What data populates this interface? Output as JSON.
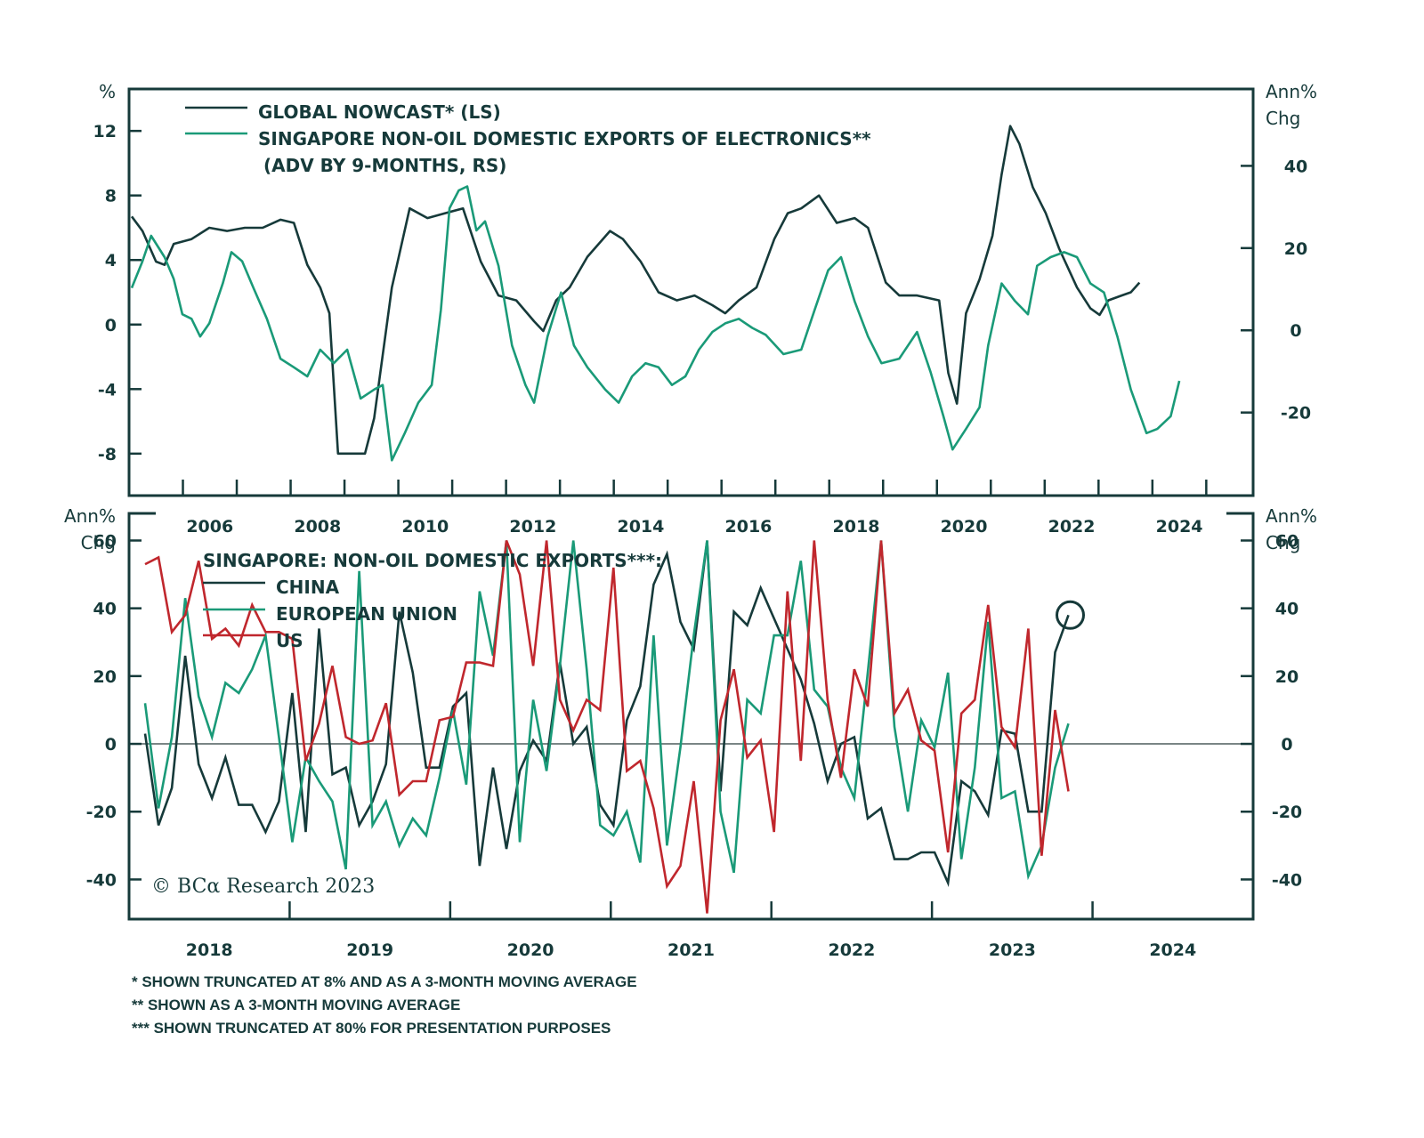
{
  "colors": {
    "frame": "#163a3a",
    "nowcast": "#163a3a",
    "singapore": "#1a9a78",
    "china": "#163a3a",
    "eu": "#1a9a78",
    "us": "#c0272d",
    "zero_line": "#7a8585"
  },
  "chart_data": [
    {
      "type": "line",
      "panel": "top",
      "left_axis_label": "%",
      "right_axis_label": [
        "Ann%",
        "Chg"
      ],
      "left_ylim": [
        -10.6,
        14.6
      ],
      "left_ticks": [
        -8,
        -4,
        0,
        4,
        8,
        12
      ],
      "right_ylim": [
        -40.2,
        58.7
      ],
      "right_ticks": [
        -20,
        0,
        20,
        40
      ],
      "xlim": [
        2005.0,
        2025.87
      ],
      "x_tick_years": [
        2006,
        2007,
        2008,
        2009,
        2010,
        2011,
        2012,
        2013,
        2014,
        2015,
        2016,
        2017,
        2018,
        2019,
        2020,
        2021,
        2022,
        2023,
        2024,
        2025
      ],
      "x_tick_labels": [
        "2006",
        "2008",
        "2010",
        "2012",
        "2014",
        "2016",
        "2018",
        "2020",
        "2022",
        "2024"
      ],
      "legend": [
        {
          "label": "GLOBAL NOWCAST* (LS)",
          "series": "nowcast"
        },
        {
          "label": "SINGAPORE NON-OIL DOMESTIC EXPORTS OF ELECTRONICS**",
          "series": "singapore"
        },
        {
          "label": "(ADV BY 9-MONTHS, RS)",
          "series": null
        }
      ],
      "series": [
        {
          "name": "Global Nowcast (LS)",
          "key": "nowcast",
          "axis": "left",
          "x": [
            2005.05,
            2005.25,
            2005.5,
            2005.66,
            2005.83,
            2006.16,
            2006.49,
            2006.82,
            2007.15,
            2007.48,
            2007.81,
            2008.06,
            2008.31,
            2008.55,
            2008.72,
            2008.88,
            2009.38,
            2009.55,
            2009.88,
            2010.21,
            2010.54,
            2010.87,
            2011.2,
            2011.53,
            2011.86,
            2012.19,
            2012.52,
            2012.69,
            2012.93,
            2013.18,
            2013.51,
            2013.93,
            2014.17,
            2014.5,
            2014.83,
            2015.17,
            2015.5,
            2015.83,
            2016.07,
            2016.32,
            2016.65,
            2016.98,
            2017.23,
            2017.48,
            2017.81,
            2018.14,
            2018.47,
            2018.72,
            2019.05,
            2019.3,
            2019.63,
            2020.04,
            2020.21,
            2020.37,
            2020.54,
            2020.79,
            2021.03,
            2021.2,
            2021.36,
            2021.53,
            2021.78,
            2022.02,
            2022.27,
            2022.6,
            2022.85,
            2023.02,
            2023.18,
            2023.43,
            2023.6,
            2023.76
          ],
          "y": [
            6.7,
            5.8,
            3.9,
            3.7,
            5.0,
            5.3,
            6.0,
            5.8,
            6.0,
            6.0,
            6.5,
            6.3,
            3.7,
            2.3,
            0.7,
            -8.0,
            -8.0,
            -5.8,
            2.3,
            7.2,
            6.6,
            6.9,
            7.2,
            3.9,
            1.8,
            1.5,
            0.2,
            -0.4,
            1.5,
            2.3,
            4.2,
            5.8,
            5.3,
            3.9,
            2.0,
            1.5,
            1.8,
            1.2,
            0.7,
            1.5,
            2.3,
            5.3,
            6.9,
            7.2,
            8.0,
            6.3,
            6.6,
            6.0,
            2.6,
            1.8,
            1.8,
            1.5,
            -3.0,
            -4.9,
            0.7,
            2.8,
            5.5,
            9.3,
            12.3,
            11.2,
            8.5,
            6.9,
            4.7,
            2.3,
            1.0,
            0.6,
            1.5,
            1.8,
            2.0,
            2.6
          ]
        },
        {
          "name": "Singapore non-oil domestic exports of electronics (adv by 9 months, RS)",
          "key": "singapore",
          "axis": "right",
          "x": [
            2005.05,
            2005.25,
            2005.41,
            2005.66,
            2005.83,
            2005.99,
            2006.16,
            2006.32,
            2006.49,
            2006.74,
            2006.9,
            2007.1,
            2007.31,
            2007.56,
            2007.81,
            2008.06,
            2008.31,
            2008.55,
            2008.8,
            2009.05,
            2009.3,
            2009.55,
            2009.71,
            2009.88,
            2010.12,
            2010.37,
            2010.62,
            2010.79,
            2010.95,
            2011.12,
            2011.28,
            2011.45,
            2011.61,
            2011.86,
            2012.11,
            2012.36,
            2012.52,
            2012.77,
            2013.02,
            2013.26,
            2013.51,
            2013.84,
            2014.09,
            2014.34,
            2014.59,
            2014.83,
            2015.08,
            2015.33,
            2015.58,
            2015.83,
            2016.07,
            2016.32,
            2016.57,
            2016.82,
            2017.15,
            2017.48,
            2017.73,
            2017.98,
            2018.22,
            2018.47,
            2018.72,
            2018.97,
            2019.3,
            2019.63,
            2019.88,
            2020.12,
            2020.29,
            2020.54,
            2020.79,
            2020.95,
            2021.2,
            2021.45,
            2021.69,
            2021.86,
            2022.11,
            2022.36,
            2022.6,
            2022.85,
            2023.1,
            2023.35,
            2023.6,
            2023.89,
            2024.09,
            2024.34,
            2024.5
          ],
          "y": [
            10.3,
            16.8,
            23.0,
            17.8,
            12.5,
            3.9,
            2.8,
            -1.5,
            1.7,
            11.4,
            19.0,
            16.8,
            10.3,
            2.8,
            -6.9,
            -9.0,
            -11.2,
            -4.7,
            -8.0,
            -4.7,
            -16.6,
            -14.4,
            -13.3,
            -31.6,
            -25.0,
            -17.6,
            -13.3,
            5.0,
            29.7,
            34.0,
            35.0,
            24.3,
            26.5,
            15.7,
            -3.7,
            -13.3,
            -17.6,
            -1.5,
            9.2,
            -3.7,
            -9.0,
            -14.4,
            -17.6,
            -11.2,
            -8.0,
            -9.0,
            -13.3,
            -11.2,
            -4.7,
            -0.4,
            1.7,
            2.8,
            0.6,
            -1.1,
            -5.8,
            -4.7,
            5.0,
            14.6,
            17.8,
            7.1,
            -1.5,
            -8.0,
            -6.9,
            -0.4,
            -10.1,
            -20.9,
            -29.0,
            -24.0,
            -18.7,
            -3.7,
            11.4,
            7.1,
            3.9,
            15.7,
            17.8,
            19.0,
            17.8,
            11.4,
            9.2,
            -1.5,
            -14.4,
            -25.0,
            -24.0,
            -20.9,
            -12.3
          ]
        }
      ]
    },
    {
      "type": "line",
      "panel": "bottom",
      "title": "SINGAPORE: NON-OIL DOMESTIC EXPORTS***:",
      "left_axis_label": [
        "Ann%",
        "Chg"
      ],
      "right_axis_label": [
        "Ann%",
        "Chg"
      ],
      "ylim": [
        -51.7,
        68.0
      ],
      "y_ticks": [
        -40,
        -20,
        0,
        20,
        40,
        60
      ],
      "xlim": [
        2018.0,
        2025.0
      ],
      "x_tick_years": [
        2019,
        2020,
        2021,
        2022,
        2023,
        2024
      ],
      "x_tick_labels": [
        "2018",
        "2019",
        "2020",
        "2021",
        "2022",
        "2023",
        "2024"
      ],
      "x_start": 2018.1,
      "x_step_months": 1,
      "legend": [
        {
          "label": "CHINA",
          "series": "china"
        },
        {
          "label": "EUROPEAN UNION",
          "series": "eu"
        },
        {
          "label": "US",
          "series": "us"
        }
      ],
      "annotation": {
        "type": "circle",
        "series": "china",
        "note": "latest China reading highlighted",
        "value": 38
      },
      "series": [
        {
          "name": "China",
          "key": "china",
          "values": [
            3,
            -24,
            -13,
            26,
            -6,
            -16,
            -4,
            -18,
            -18,
            -26,
            -17,
            15,
            -26,
            34,
            -9,
            -7,
            -24,
            -17,
            -6,
            39,
            21,
            -7,
            -7,
            11,
            15,
            -36,
            -7,
            -31,
            -8,
            1,
            -5,
            24,
            0,
            5,
            -18,
            -24,
            7,
            17,
            47,
            56,
            36,
            28,
            60,
            -14,
            39,
            35,
            46,
            37,
            28,
            19,
            6,
            -11,
            0,
            2,
            -22,
            -19,
            -34,
            -34,
            -32,
            -32,
            -41,
            -11,
            -14,
            -21,
            4,
            3,
            -20,
            -20,
            27,
            38
          ]
        },
        {
          "name": "European Union",
          "key": "eu",
          "values": [
            12,
            -19,
            2,
            43,
            14,
            2,
            18,
            15,
            22,
            32,
            2,
            -29,
            -4,
            -11,
            -17,
            -37,
            51,
            -24,
            -17,
            -30,
            -22,
            -27,
            -10,
            10,
            -12,
            45,
            26,
            60,
            -29,
            13,
            -8,
            23,
            60,
            22,
            -24,
            -27,
            -20,
            -35,
            32,
            -30,
            -1,
            32,
            60,
            -20,
            -38,
            13,
            9,
            32,
            32,
            54,
            16,
            11,
            -7,
            -16,
            21,
            60,
            5,
            -20,
            7,
            -1,
            21,
            -34,
            -7,
            36,
            -16,
            -14,
            -39,
            -30,
            -7,
            6
          ]
        },
        {
          "name": "US",
          "key": "us",
          "values": [
            53,
            55,
            33,
            38,
            54,
            31,
            34,
            29,
            41,
            33,
            33,
            31,
            -5,
            6,
            23,
            2,
            0,
            1,
            12,
            -15,
            -11,
            -11,
            7,
            8,
            24,
            24,
            23,
            60,
            50,
            23,
            60,
            13,
            4,
            13,
            10,
            52,
            -8,
            -5,
            -19,
            -42,
            -36,
            -11,
            -50,
            7,
            22,
            -4,
            1,
            -26,
            45,
            -5,
            60,
            13,
            -10,
            22,
            11,
            60,
            9,
            16,
            1,
            -2,
            -32,
            9,
            13,
            41,
            5,
            -1,
            34,
            -33,
            10,
            -14
          ]
        }
      ]
    }
  ],
  "copyright": "© BCα Research 2023",
  "footnotes": [
    "* SHOWN TRUNCATED AT 8% AND AS A 3-MONTH MOVING AVERAGE",
    "** SHOWN AS A 3-MONTH MOVING AVERAGE",
    "*** SHOWN TRUNCATED AT 80% FOR PRESENTATION PURPOSES"
  ]
}
